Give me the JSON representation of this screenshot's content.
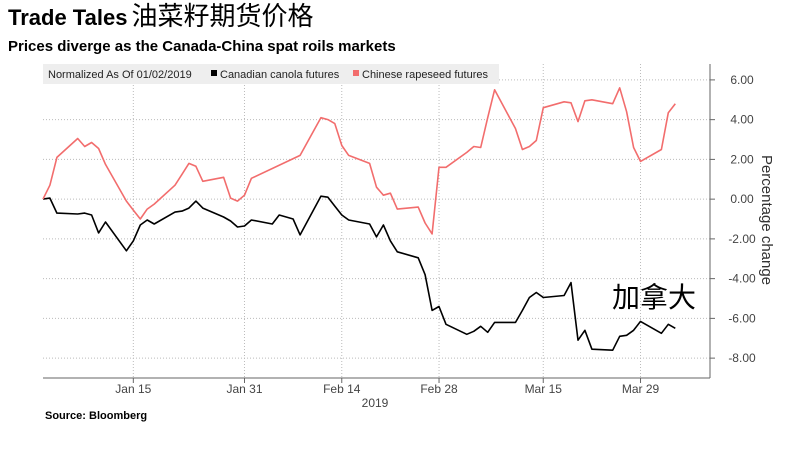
{
  "header": {
    "title": "Trade Tales",
    "title_cn": "油菜籽期货价格",
    "subtitle": "Prices diverge as the Canada-China spat roils markets"
  },
  "footer": {
    "source": "Source: Bloomberg"
  },
  "annotation": {
    "text": "加拿大"
  },
  "chart_data": {
    "type": "line",
    "ylabel": "Percentage change",
    "ylim": [
      -9.0,
      6.8
    ],
    "yticks": [
      6,
      4,
      2,
      0,
      -2,
      -4,
      -6,
      -8
    ],
    "ytick_labels": [
      "6.00",
      "4.00",
      "2.00",
      "0.00",
      "-2.00",
      "-4.00",
      "-6.00",
      "-8.00"
    ],
    "xlim": [
      "2019-01-02",
      "2019-04-08"
    ],
    "xticks": [
      "2019-01-15",
      "2019-01-31",
      "2019-02-14",
      "2019-02-28",
      "2019-03-15",
      "2019-03-29"
    ],
    "xtick_labels": [
      "Jan 15",
      "Jan 31",
      "Feb 14",
      "Feb 28",
      "Mar 15",
      "Mar 29"
    ],
    "xaxis_year": "2019",
    "legend": {
      "placement": "top-left",
      "prefix": "Normalized As Of 01/02/2019"
    },
    "series": [
      {
        "name": "Canadian canola futures",
        "color": "#000000",
        "points": [
          [
            "2019-01-02",
            0.0
          ],
          [
            "2019-01-03",
            0.05
          ],
          [
            "2019-01-04",
            -0.7
          ],
          [
            "2019-01-07",
            -0.75
          ],
          [
            "2019-01-08",
            -0.7
          ],
          [
            "2019-01-09",
            -0.8
          ],
          [
            "2019-01-10",
            -1.7
          ],
          [
            "2019-01-11",
            -1.15
          ],
          [
            "2019-01-14",
            -2.6
          ],
          [
            "2019-01-15",
            -2.1
          ],
          [
            "2019-01-16",
            -1.3
          ],
          [
            "2019-01-17",
            -1.05
          ],
          [
            "2019-01-18",
            -1.25
          ],
          [
            "2019-01-21",
            -0.65
          ],
          [
            "2019-01-22",
            -0.6
          ],
          [
            "2019-01-23",
            -0.45
          ],
          [
            "2019-01-24",
            -0.1
          ],
          [
            "2019-01-25",
            -0.45
          ],
          [
            "2019-01-28",
            -0.9
          ],
          [
            "2019-01-29",
            -1.1
          ],
          [
            "2019-01-30",
            -1.4
          ],
          [
            "2019-01-31",
            -1.35
          ],
          [
            "2019-02-01",
            -1.05
          ],
          [
            "2019-02-04",
            -1.25
          ],
          [
            "2019-02-05",
            -0.8
          ],
          [
            "2019-02-06",
            -0.9
          ],
          [
            "2019-02-07",
            -1.0
          ],
          [
            "2019-02-08",
            -1.8
          ],
          [
            "2019-02-11",
            0.15
          ],
          [
            "2019-02-12",
            0.1
          ],
          [
            "2019-02-13",
            -0.35
          ],
          [
            "2019-02-14",
            -0.8
          ],
          [
            "2019-02-15",
            -1.05
          ],
          [
            "2019-02-18",
            -1.25
          ],
          [
            "2019-02-19",
            -1.9
          ],
          [
            "2019-02-20",
            -1.3
          ],
          [
            "2019-02-21",
            -2.1
          ],
          [
            "2019-02-22",
            -2.65
          ],
          [
            "2019-02-25",
            -2.95
          ],
          [
            "2019-02-26",
            -3.8
          ],
          [
            "2019-02-27",
            -5.6
          ],
          [
            "2019-02-28",
            -5.4
          ],
          [
            "2019-03-01",
            -6.3
          ],
          [
            "2019-03-04",
            -6.8
          ],
          [
            "2019-03-05",
            -6.65
          ],
          [
            "2019-03-06",
            -6.4
          ],
          [
            "2019-03-07",
            -6.7
          ],
          [
            "2019-03-08",
            -6.2
          ],
          [
            "2019-03-11",
            -6.2
          ],
          [
            "2019-03-12",
            -5.6
          ],
          [
            "2019-03-13",
            -4.95
          ],
          [
            "2019-03-14",
            -4.7
          ],
          [
            "2019-03-15",
            -4.95
          ],
          [
            "2019-03-18",
            -4.85
          ],
          [
            "2019-03-19",
            -4.2
          ],
          [
            "2019-03-20",
            -7.1
          ],
          [
            "2019-03-21",
            -6.6
          ],
          [
            "2019-03-22",
            -7.55
          ],
          [
            "2019-03-25",
            -7.6
          ],
          [
            "2019-03-26",
            -6.9
          ],
          [
            "2019-03-27",
            -6.85
          ],
          [
            "2019-03-28",
            -6.6
          ],
          [
            "2019-03-29",
            -6.15
          ],
          [
            "2019-04-01",
            -6.75
          ],
          [
            "2019-04-02",
            -6.3
          ],
          [
            "2019-04-03",
            -6.5
          ]
        ]
      },
      {
        "name": "Chinese rapeseed futures",
        "color": "#f26d6d",
        "points": [
          [
            "2019-01-02",
            0.0
          ],
          [
            "2019-01-03",
            0.7
          ],
          [
            "2019-01-04",
            2.1
          ],
          [
            "2019-01-07",
            3.05
          ],
          [
            "2019-01-08",
            2.65
          ],
          [
            "2019-01-09",
            2.85
          ],
          [
            "2019-01-10",
            2.55
          ],
          [
            "2019-01-11",
            1.75
          ],
          [
            "2019-01-14",
            -0.1
          ],
          [
            "2019-01-15",
            -0.55
          ],
          [
            "2019-01-16",
            -1.0
          ],
          [
            "2019-01-17",
            -0.5
          ],
          [
            "2019-01-18",
            -0.25
          ],
          [
            "2019-01-21",
            0.7
          ],
          [
            "2019-01-22",
            1.25
          ],
          [
            "2019-01-23",
            1.8
          ],
          [
            "2019-01-24",
            1.65
          ],
          [
            "2019-01-25",
            0.9
          ],
          [
            "2019-01-28",
            1.1
          ],
          [
            "2019-01-29",
            0.05
          ],
          [
            "2019-01-30",
            -0.1
          ],
          [
            "2019-01-31",
            0.2
          ],
          [
            "2019-02-01",
            1.05
          ],
          [
            "2019-02-08",
            2.2
          ],
          [
            "2019-02-11",
            4.1
          ],
          [
            "2019-02-12",
            4.0
          ],
          [
            "2019-02-13",
            3.8
          ],
          [
            "2019-02-14",
            2.7
          ],
          [
            "2019-02-15",
            2.2
          ],
          [
            "2019-02-18",
            1.8
          ],
          [
            "2019-02-19",
            0.6
          ],
          [
            "2019-02-20",
            0.2
          ],
          [
            "2019-02-21",
            0.3
          ],
          [
            "2019-02-22",
            -0.5
          ],
          [
            "2019-02-25",
            -0.4
          ],
          [
            "2019-02-26",
            -1.2
          ],
          [
            "2019-02-27",
            -1.75
          ],
          [
            "2019-02-28",
            1.6
          ],
          [
            "2019-03-01",
            1.6
          ],
          [
            "2019-03-04",
            2.35
          ],
          [
            "2019-03-05",
            2.65
          ],
          [
            "2019-03-06",
            2.6
          ],
          [
            "2019-03-07",
            4.1
          ],
          [
            "2019-03-08",
            5.5
          ],
          [
            "2019-03-11",
            3.55
          ],
          [
            "2019-03-12",
            2.5
          ],
          [
            "2019-03-13",
            2.65
          ],
          [
            "2019-03-14",
            2.95
          ],
          [
            "2019-03-15",
            4.6
          ],
          [
            "2019-03-18",
            4.9
          ],
          [
            "2019-03-19",
            4.85
          ],
          [
            "2019-03-20",
            3.9
          ],
          [
            "2019-03-21",
            4.95
          ],
          [
            "2019-03-22",
            5.0
          ],
          [
            "2019-03-25",
            4.8
          ],
          [
            "2019-03-26",
            5.6
          ],
          [
            "2019-03-27",
            4.4
          ],
          [
            "2019-03-28",
            2.6
          ],
          [
            "2019-03-29",
            1.9
          ],
          [
            "2019-04-01",
            2.5
          ],
          [
            "2019-04-02",
            4.35
          ],
          [
            "2019-04-03",
            4.8
          ]
        ]
      }
    ]
  }
}
